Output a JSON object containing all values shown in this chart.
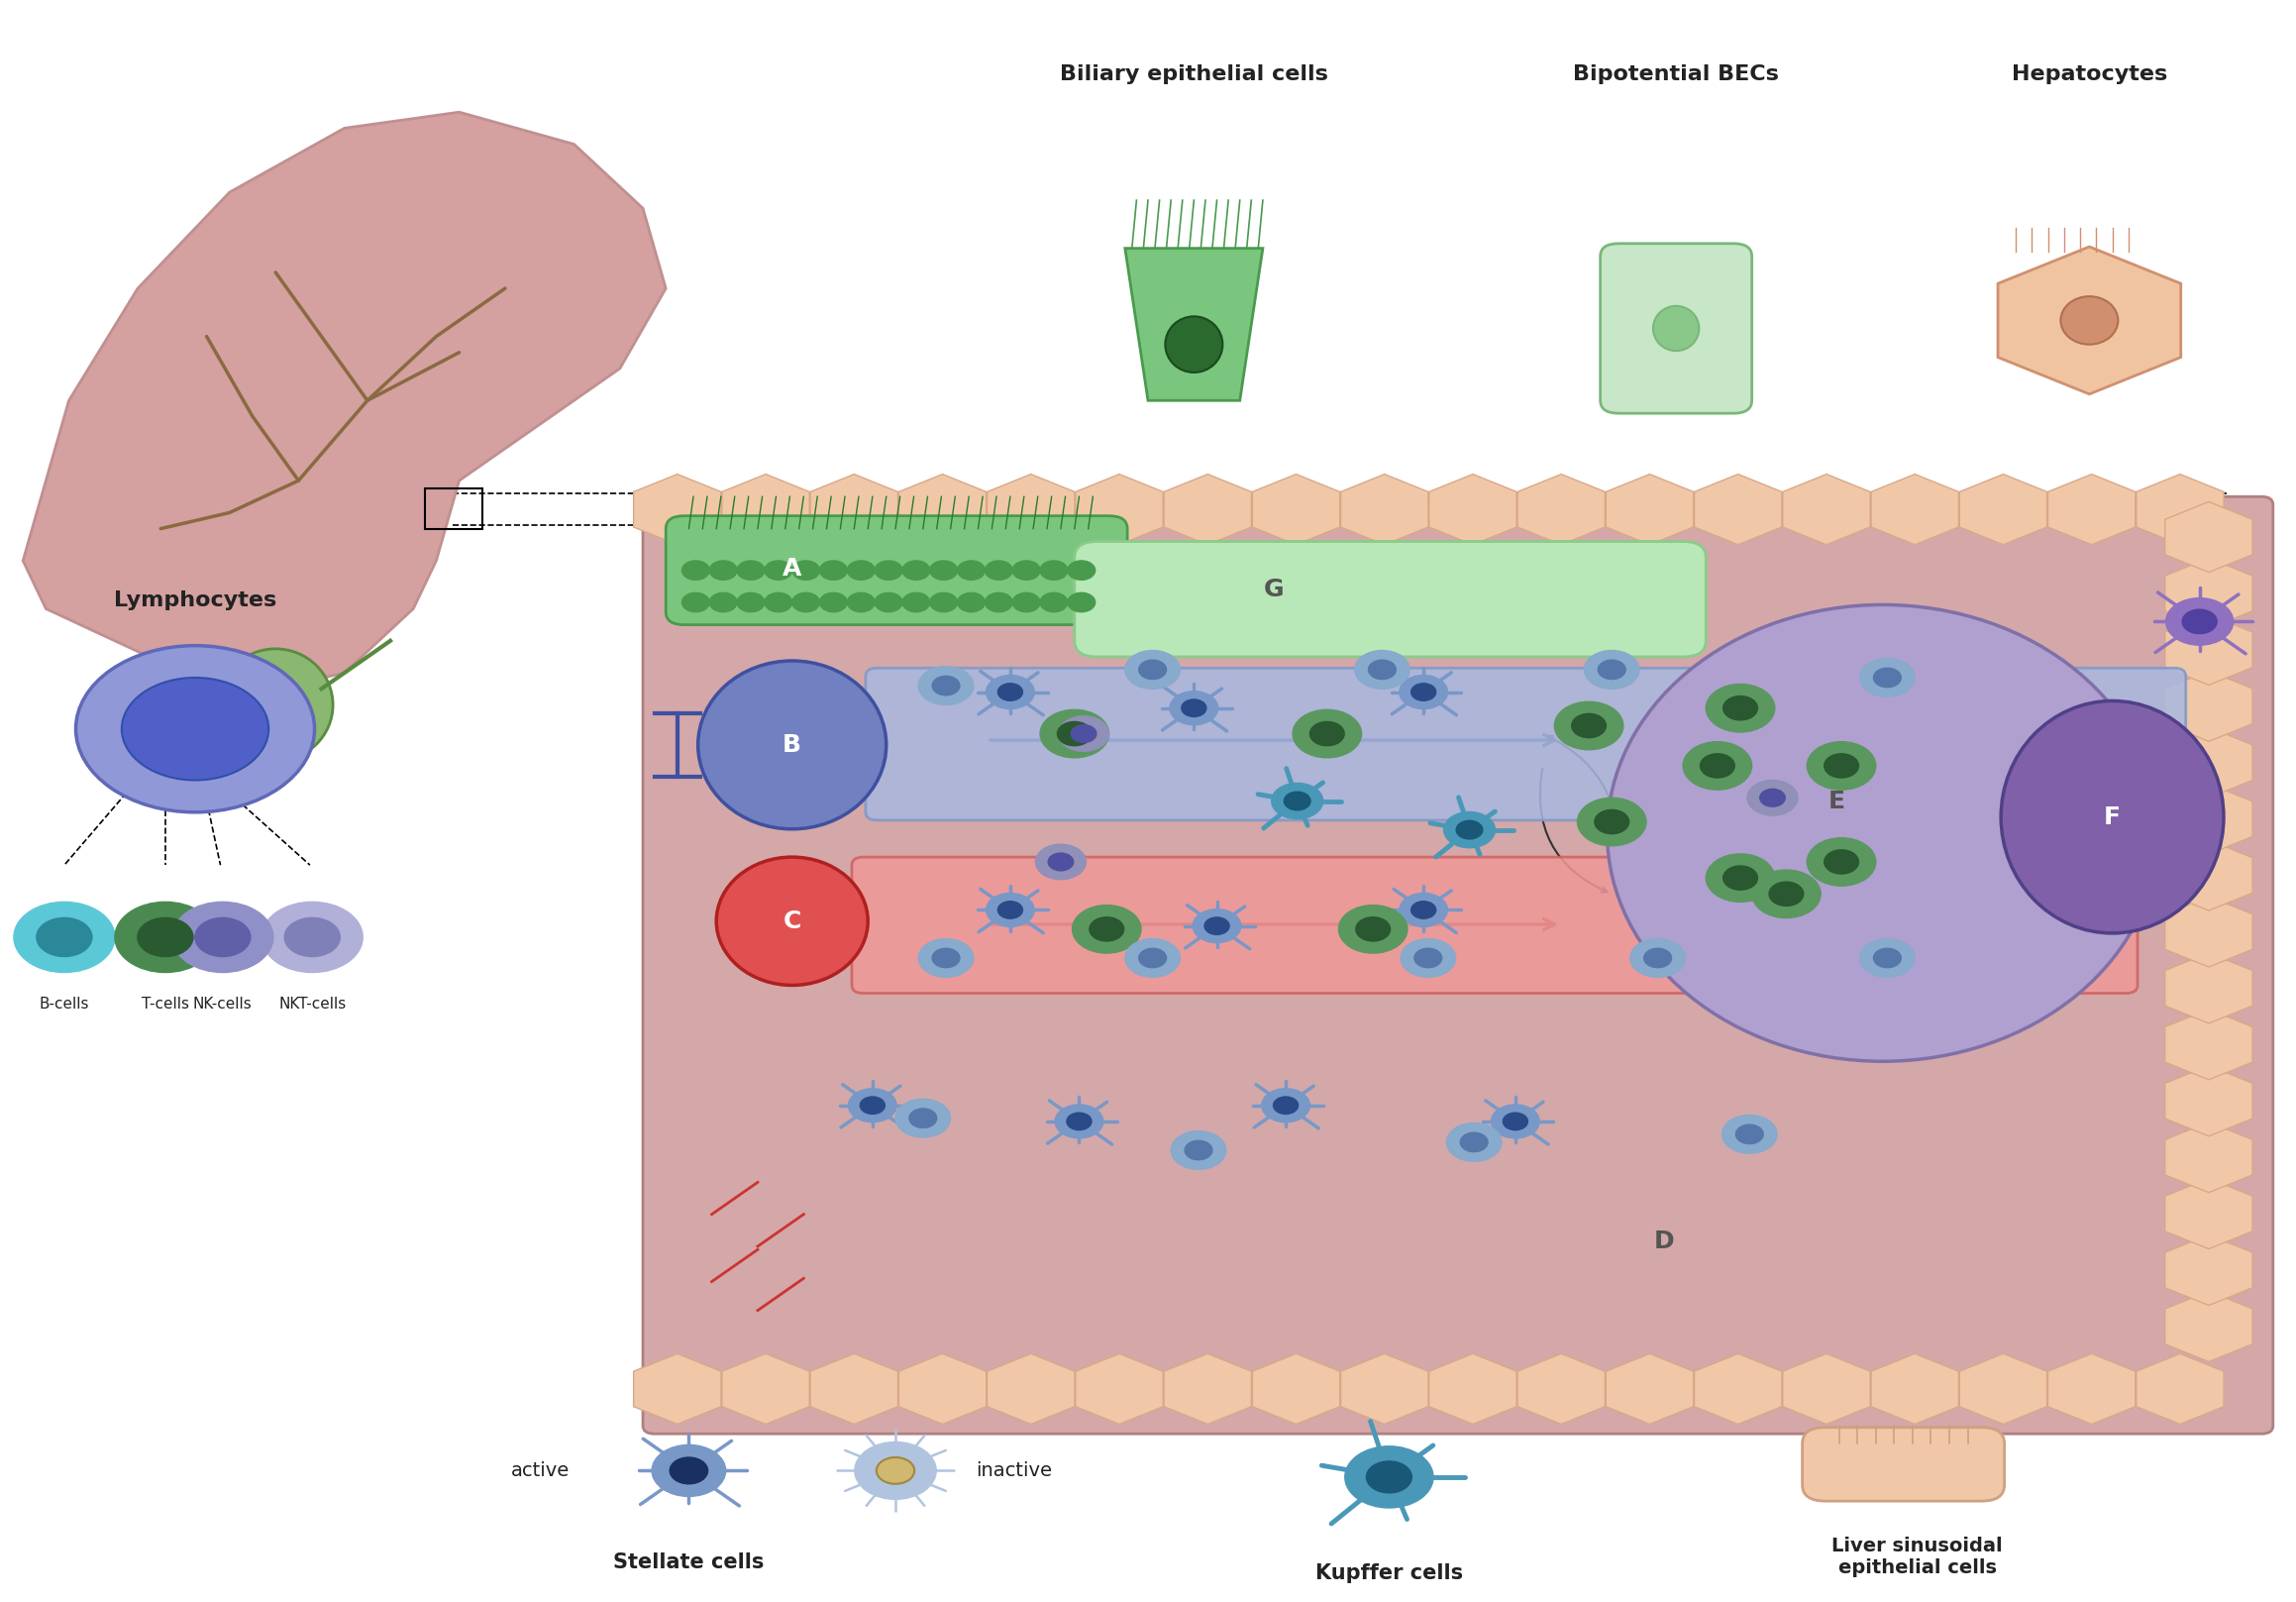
{
  "title": "",
  "bg_color": "#ffffff",
  "labels": {
    "biliary_epithelial": "Biliary epithelial cells",
    "bipotential": "Bipotential BECs",
    "hepatocytes": "Hepatocytes",
    "lymphocytes": "Lymphocytes",
    "b_cells": "B-cells",
    "t_cells": "T-cells",
    "nkt_cells": "NKT-cells",
    "nk_cells": "NK-cells",
    "active": "active",
    "inactive": "inactive",
    "stellate": "Stellate cells",
    "kupffer": "Kupffer cells",
    "sinusoidal": "Liver sinusoidal\nepithelial cells",
    "A": "A",
    "B": "B",
    "C": "C",
    "D": "D",
    "E": "E",
    "F": "F",
    "G": "G"
  },
  "colors": {
    "bg_color": "#ffffff",
    "liver_pink": "#d4a0a0",
    "liver_border": "#c09090",
    "gallbladder": "#8ab870",
    "gallbladder_border": "#5a8a40",
    "vessel_brown": "#8a6a40",
    "bile_green": "#7bc67e",
    "bile_border": "#4a9a4e",
    "bile_light": "#b8e8b8",
    "bile_light_border": "#8acc8a",
    "bec_nucleus": "#2a6a2e",
    "bipotential_fill": "#c8e6c8",
    "bipotential_border": "#7ab87a",
    "bipotential_nuc": "#8ac88a",
    "hepatocyte_fill": "#f0c4a0",
    "hepatocyte_border": "#d09070",
    "main_box_fill": "#d4a8a8",
    "main_box_border": "#b08080",
    "hex_fill": "#f0c8a8",
    "hex_border": "#d8a888",
    "portal_fill": "#7080c0",
    "portal_border": "#4050a0",
    "portal_tube": "#a8b8e0",
    "portal_tube_border": "#8098c8",
    "artery_fill": "#e05050",
    "artery_border": "#b02020",
    "artery_tube": "#f09898",
    "artery_tube_border": "#d06060",
    "central_bg": "#b0a0d0",
    "central_bg_border": "#8070a8",
    "central_vein_fill": "#8060a8",
    "central_vein_border": "#504088",
    "lymphocyte_outer": "#9098d8",
    "lymphocyte_outer_border": "#6068b8",
    "lymphocyte_inner": "#5060c8",
    "lymphocyte_inner_border": "#3050a8",
    "b_cell": "#5bc8d8",
    "b_cell_dark": "#2a8898",
    "t_cell": "#4a8a50",
    "t_cell_dark": "#2a5a30",
    "nkt_cell": "#b0b0d8",
    "nkt_cell_dark": "#8080b8",
    "nk_cell": "#9090c8",
    "nk_cell_dark": "#6060a8",
    "stellate_blue": "#7898c8",
    "stellate_dark": "#1a3060",
    "stellate_arm": "#2a4a88",
    "kupffer_teal": "#4a98b8",
    "kupffer_dark": "#1a5878",
    "green_cell": "#5a9860",
    "green_cell_dark": "#2a5830",
    "blue_dot": "#88aacc",
    "blue_dot_dark": "#5577aa",
    "purple_cell": "#9090b8",
    "purple_cell_dark": "#5050a0",
    "neural_purple": "#9070c0",
    "neural_dark": "#5040a0",
    "sinusoidal_fill": "#f0c8a8",
    "sinusoidal_border": "#d0a080",
    "inactive_fill": "#b0c4e0",
    "inactive_nuc": "#d0b870",
    "inactive_nuc_border": "#a08840",
    "arrow_blue": "#334488",
    "arrow_red": "#993333",
    "valve_color": "#4050a0",
    "text_dark": "#222222"
  }
}
